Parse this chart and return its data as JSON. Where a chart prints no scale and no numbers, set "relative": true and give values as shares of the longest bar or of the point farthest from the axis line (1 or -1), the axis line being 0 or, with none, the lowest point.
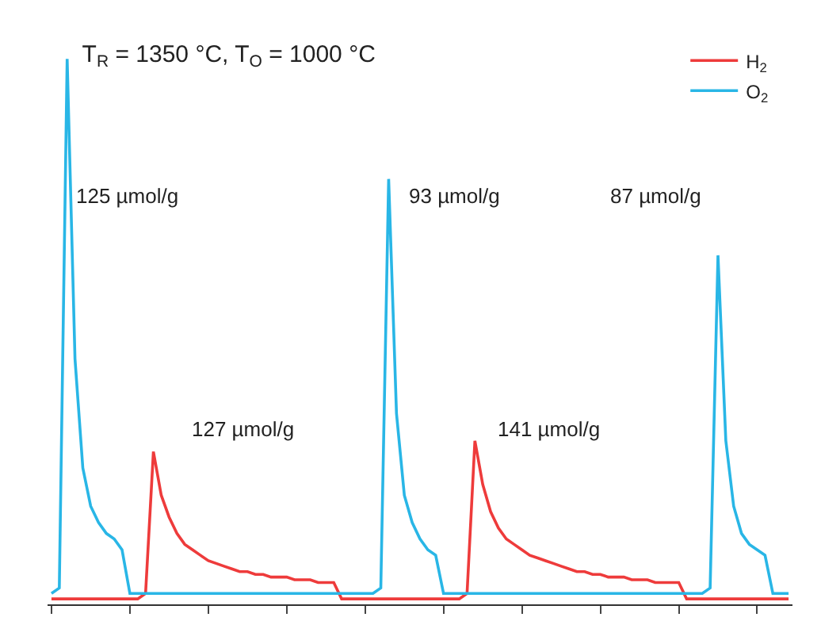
{
  "chart_data": {
    "type": "line",
    "relative": true,
    "title": "T$_{R}$ = 1350 °C, T$_{O}$ = 1000 °C",
    "categories": [
      null,
      null,
      null,
      null,
      null,
      null,
      null,
      null,
      null,
      null,
      null,
      null,
      null,
      null,
      null,
      null,
      null,
      null,
      null,
      null,
      null,
      null,
      null,
      null,
      null,
      null,
      null,
      null,
      null,
      null,
      null,
      null,
      null,
      null,
      null,
      null,
      null,
      null,
      null,
      null,
      null,
      null,
      null,
      null,
      null,
      null,
      null,
      null,
      null,
      null,
      null,
      null,
      null,
      null,
      null,
      null,
      null,
      null,
      null,
      null,
      null,
      null,
      null,
      null,
      null,
      null,
      null,
      null,
      null,
      null,
      null,
      null,
      null,
      null,
      null,
      null,
      null,
      null,
      null,
      null,
      null,
      null,
      null,
      null,
      null,
      null,
      null,
      null,
      null,
      null,
      null,
      null,
      null,
      null,
      null
    ],
    "series": [
      {
        "name": "H$_{2}$",
        "color": "#ee3b3b",
        "values": [
          0.01,
          0.01,
          0.01,
          0.01,
          0.01,
          0.01,
          0.01,
          0.01,
          0.01,
          0.01,
          0.01,
          0.01,
          0.02,
          0.28,
          0.2,
          0.16,
          0.13,
          0.11,
          0.1,
          0.09,
          0.08,
          0.075,
          0.07,
          0.065,
          0.06,
          0.06,
          0.055,
          0.055,
          0.05,
          0.05,
          0.05,
          0.045,
          0.045,
          0.045,
          0.04,
          0.04,
          0.04,
          0.01,
          0.01,
          0.01,
          0.01,
          0.01,
          0.01,
          0.01,
          0.01,
          0.01,
          0.01,
          0.01,
          0.01,
          0.01,
          0.01,
          0.01,
          0.01,
          0.02,
          0.3,
          0.22,
          0.17,
          0.14,
          0.12,
          0.11,
          0.1,
          0.09,
          0.085,
          0.08,
          0.075,
          0.07,
          0.065,
          0.06,
          0.06,
          0.055,
          0.055,
          0.05,
          0.05,
          0.05,
          0.045,
          0.045,
          0.045,
          0.04,
          0.04,
          0.04,
          0.04,
          0.01,
          0.01,
          0.01,
          0.01,
          0.01,
          0.01,
          0.01,
          0.01,
          0.01,
          0.01,
          0.01,
          0.01,
          0.01,
          0.01
        ]
      },
      {
        "name": "O$_{2}$",
        "color": "#29b6e6",
        "values": [
          0.02,
          0.03,
          1.0,
          0.45,
          0.25,
          0.18,
          0.15,
          0.13,
          0.12,
          0.1,
          0.02,
          0.02,
          0.02,
          0.02,
          0.02,
          0.02,
          0.02,
          0.02,
          0.02,
          0.02,
          0.02,
          0.02,
          0.02,
          0.02,
          0.02,
          0.02,
          0.02,
          0.02,
          0.02,
          0.02,
          0.02,
          0.02,
          0.02,
          0.02,
          0.02,
          0.02,
          0.02,
          0.02,
          0.02,
          0.02,
          0.02,
          0.02,
          0.03,
          0.78,
          0.35,
          0.2,
          0.15,
          0.12,
          0.1,
          0.09,
          0.02,
          0.02,
          0.02,
          0.02,
          0.02,
          0.02,
          0.02,
          0.02,
          0.02,
          0.02,
          0.02,
          0.02,
          0.02,
          0.02,
          0.02,
          0.02,
          0.02,
          0.02,
          0.02,
          0.02,
          0.02,
          0.02,
          0.02,
          0.02,
          0.02,
          0.02,
          0.02,
          0.02,
          0.02,
          0.02,
          0.02,
          0.02,
          0.02,
          0.02,
          0.03,
          0.64,
          0.3,
          0.18,
          0.13,
          0.11,
          0.1,
          0.09,
          0.02,
          0.02,
          0.02
        ]
      }
    ],
    "annotations": [
      "125 µmol/g",
      "127 µmol/g",
      "93 µmol/g",
      "141 µmol/g",
      "87 µmol/g"
    ],
    "legend": "top right",
    "marker": "none",
    "line_style": "solid"
  }
}
